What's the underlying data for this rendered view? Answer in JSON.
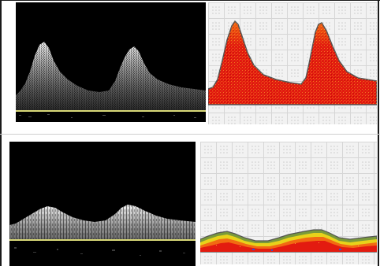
{
  "figure": {
    "panels": [
      {
        "id": "doppler-top",
        "kind": "spectral-doppler",
        "pattern": "sharp-systolic-peaks",
        "peak_count": 2
      },
      {
        "id": "color-top",
        "kind": "color-mapped-doppler",
        "pattern": "sharp-systolic-peaks",
        "peak_count": 2
      },
      {
        "id": "doppler-bottom",
        "kind": "spectral-doppler",
        "pattern": "damped-low-amplitude",
        "peak_count": 2
      },
      {
        "id": "color-bottom",
        "kind": "color-mapped-doppler",
        "pattern": "damped-low-amplitude",
        "peak_count": 2
      }
    ],
    "colors": {
      "background": "#000000",
      "baseline": "#d8d878",
      "grid_bg": "#f2f2f2",
      "grid_line": "#d6d6d6",
      "fill_red": "#e31b10",
      "fill_orange": "#f26a12",
      "fill_yellow": "#e8d21a",
      "fill_green": "#7a9a3a",
      "fill_blue": "#3a4fc8",
      "outline": "#555555"
    }
  }
}
